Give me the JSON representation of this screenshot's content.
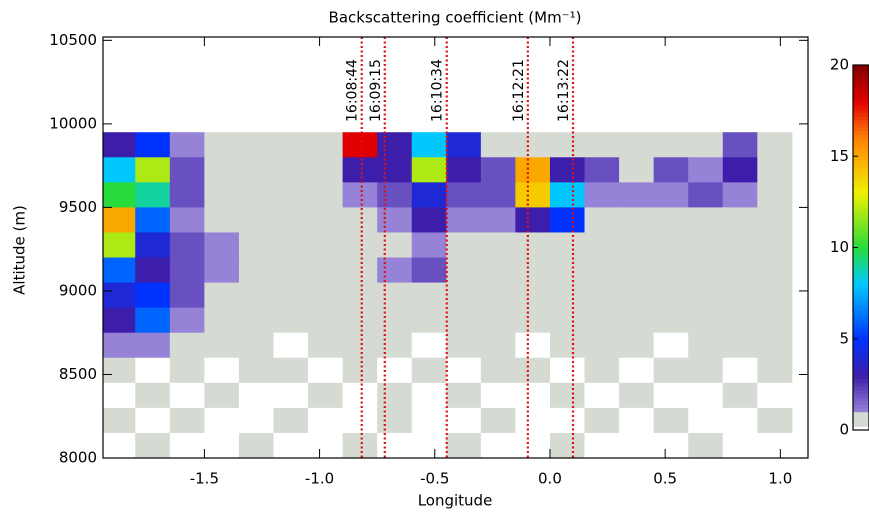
{
  "chart_data": {
    "type": "contour",
    "title": "Backscattering coefficient (Mm⁻¹)",
    "x_label": "Longitude",
    "y_label": "Altitude (m)",
    "xlim": [
      -1.94,
      1.12
    ],
    "ylim": [
      8000,
      10520
    ],
    "xticks": [
      -1.5,
      {
        "value": -1.0,
        "label": "-1.0"
      },
      -0.5,
      {
        "value": 0.0,
        "label": "0.0"
      },
      0.5,
      {
        "value": 1.0,
        "label": "1.0"
      }
    ],
    "yticks": [
      8000,
      8500,
      9000,
      9500,
      10000,
      10500
    ],
    "clim": [
      0,
      20
    ],
    "cticks": [
      0,
      5,
      10,
      15,
      20
    ],
    "annotations": [
      {
        "x": -0.817,
        "label": "16:08:44",
        "color": "#e01010"
      },
      {
        "x": -0.717,
        "label": "16:09:15",
        "color": "#e01010"
      },
      {
        "x": -0.448,
        "label": "16:10:34",
        "color": "#e01010"
      },
      {
        "x": -0.096,
        "label": "16:12:21",
        "color": "#e01010"
      },
      {
        "x": 0.1,
        "label": "16:13:22",
        "color": "#e01010"
      }
    ],
    "x": [
      -1.875,
      -1.725,
      -1.575,
      -1.425,
      -1.275,
      -1.125,
      -0.975,
      -0.825,
      -0.675,
      -0.525,
      -0.375,
      -0.225,
      -0.075,
      0.075,
      0.225,
      0.375,
      0.525,
      0.675,
      0.825,
      0.975
    ],
    "y": [
      9875,
      9725,
      9575,
      9425,
      9275,
      9125,
      8975,
      8825,
      8675,
      8525,
      8375,
      8225,
      8075
    ],
    "z": [
      [
        3,
        5,
        1,
        0.5,
        0.5,
        0.5,
        0.5,
        18,
        3,
        8,
        4,
        0.5,
        0.5,
        0.5,
        0.5,
        0.5,
        0.5,
        0.5,
        2,
        0.5
      ],
      [
        8,
        12,
        2,
        0.5,
        0.5,
        0.5,
        0.5,
        3,
        3,
        12,
        3,
        2,
        15,
        3,
        2,
        0.5,
        2,
        1,
        3,
        0.5
      ],
      [
        10,
        9,
        2,
        0.5,
        0.5,
        0.5,
        0.5,
        1,
        2,
        4,
        2,
        2,
        14,
        8,
        1,
        1,
        1,
        2,
        1,
        0.5
      ],
      [
        15,
        6,
        1,
        0.5,
        0.5,
        0.5,
        0.5,
        0.5,
        1,
        3,
        1,
        1,
        3,
        5,
        0.5,
        0.5,
        0.5,
        0.5,
        0.5,
        0.5
      ],
      [
        12,
        4,
        2,
        1,
        0.5,
        0.5,
        0.5,
        0.5,
        0.5,
        1,
        0.5,
        0.5,
        0.5,
        0.5,
        0.5,
        0.5,
        0.5,
        0.5,
        0.5,
        0.5
      ],
      [
        6,
        3,
        2,
        1,
        0.5,
        0.5,
        0.5,
        0.5,
        1,
        2,
        0.5,
        0.5,
        0.5,
        0.5,
        0.5,
        0.5,
        0.5,
        0.5,
        0.5,
        0.5
      ],
      [
        4,
        5,
        2,
        0.5,
        0.5,
        0.5,
        0.5,
        0.5,
        0.5,
        0.5,
        0.5,
        0.5,
        0.5,
        0.5,
        0.5,
        0.5,
        0.5,
        0.5,
        0.5,
        0.5
      ],
      [
        3,
        6,
        1,
        0.5,
        0.5,
        0.5,
        0.5,
        0.5,
        0.5,
        0.5,
        0.5,
        0.5,
        0.5,
        0.5,
        0.5,
        0.5,
        0.5,
        0.5,
        0.5,
        0.5
      ],
      [
        1,
        1,
        0.5,
        0.5,
        0.5,
        0,
        0.5,
        0.5,
        0.5,
        0,
        0.5,
        0.5,
        0,
        0.5,
        0.5,
        0.5,
        0,
        0.5,
        0.5,
        0.5
      ],
      [
        0.5,
        0,
        0.5,
        0,
        0.5,
        0.5,
        0,
        0.5,
        0,
        0.5,
        0,
        0.5,
        0.5,
        0,
        0.5,
        0,
        0.5,
        0.5,
        0,
        0.5
      ],
      [
        0,
        0.5,
        0,
        0.5,
        0,
        0,
        0.5,
        0,
        0.5,
        0,
        0.5,
        0,
        0,
        0.5,
        0,
        0.5,
        0,
        0,
        0.5,
        0
      ],
      [
        0.5,
        0,
        0.5,
        0,
        0,
        0.5,
        0,
        0,
        0.5,
        0,
        0,
        0.5,
        0,
        0,
        0.5,
        0,
        0.5,
        0,
        0,
        0.5
      ],
      [
        0,
        0.5,
        0,
        0,
        0.5,
        0,
        0,
        0.5,
        0,
        0,
        0.5,
        0,
        0,
        0.5,
        0,
        0,
        0,
        0.5,
        0,
        0
      ]
    ]
  }
}
